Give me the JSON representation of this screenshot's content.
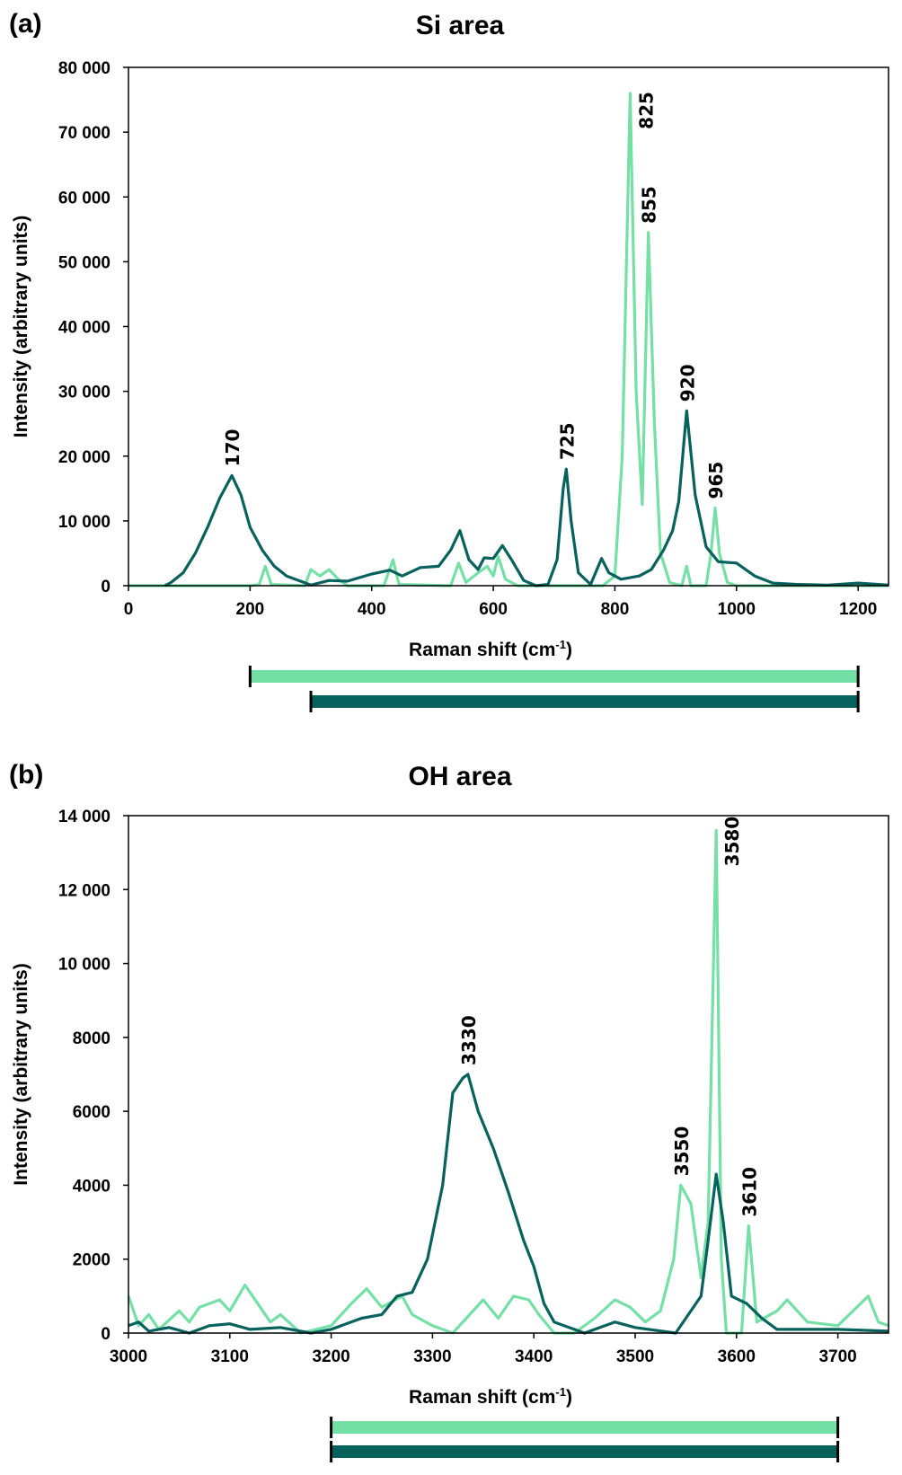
{
  "colors": {
    "light": "#74e0a6",
    "dark": "#07615c"
  },
  "chart_data": [
    {
      "type": "line",
      "panel_label": "(a)",
      "title": "Si area",
      "xlabel": "Raman shift (cm",
      "xlabel_sup": "-1",
      "xlabel_end": ")",
      "ylabel": "Intensity (arbitrary units)",
      "xlim": [
        0,
        1250
      ],
      "ylim": [
        0,
        80000
      ],
      "xticks": [
        0,
        200,
        400,
        600,
        800,
        1000,
        1200
      ],
      "xtick_labels": [
        "0",
        "200",
        "400",
        "600",
        "800",
        "1000",
        "1200"
      ],
      "yticks": [
        0,
        10000,
        20000,
        30000,
        40000,
        50000,
        60000,
        70000,
        80000
      ],
      "ytick_labels": [
        "0",
        "10 000",
        "20 000",
        "30 000",
        "40 000",
        "50 000",
        "60 000",
        "70 000",
        "80 000"
      ],
      "grid": false,
      "series": [
        {
          "name": "light",
          "color": "#74e0a6",
          "points": [
            [
              0,
              0
            ],
            [
              200,
              0
            ],
            [
              215,
              200
            ],
            [
              225,
              3000
            ],
            [
              235,
              200
            ],
            [
              290,
              0
            ],
            [
              300,
              2500
            ],
            [
              315,
              1500
            ],
            [
              330,
              2500
            ],
            [
              345,
              1000
            ],
            [
              360,
              0
            ],
            [
              420,
              0
            ],
            [
              435,
              4000
            ],
            [
              445,
              200
            ],
            [
              530,
              0
            ],
            [
              543,
              3500
            ],
            [
              555,
              500
            ],
            [
              575,
              2000
            ],
            [
              590,
              3000
            ],
            [
              600,
              1500
            ],
            [
              608,
              4500
            ],
            [
              620,
              1000
            ],
            [
              640,
              0
            ],
            [
              780,
              0
            ],
            [
              800,
              1500
            ],
            [
              812,
              20000
            ],
            [
              825,
              76000
            ],
            [
              835,
              30000
            ],
            [
              845,
              12500
            ],
            [
              855,
              54500
            ],
            [
              865,
              25000
            ],
            [
              875,
              5000
            ],
            [
              890,
              500
            ],
            [
              910,
              0
            ],
            [
              918,
              3000
            ],
            [
              925,
              0
            ],
            [
              950,
              0
            ],
            [
              958,
              5000
            ],
            [
              965,
              12000
            ],
            [
              972,
              5000
            ],
            [
              985,
              500
            ],
            [
              1000,
              0
            ],
            [
              1250,
              0
            ]
          ]
        },
        {
          "name": "dark",
          "color": "#07615c",
          "points": [
            [
              60,
              0
            ],
            [
              70,
              500
            ],
            [
              90,
              2000
            ],
            [
              110,
              5000
            ],
            [
              130,
              9000
            ],
            [
              150,
              13500
            ],
            [
              170,
              17000
            ],
            [
              185,
              14000
            ],
            [
              200,
              9000
            ],
            [
              220,
              5500
            ],
            [
              240,
              3000
            ],
            [
              260,
              1500
            ],
            [
              280,
              800
            ],
            [
              300,
              100
            ],
            [
              330,
              800
            ],
            [
              360,
              700
            ],
            [
              400,
              1800
            ],
            [
              430,
              2400
            ],
            [
              450,
              1500
            ],
            [
              480,
              2800
            ],
            [
              510,
              3000
            ],
            [
              530,
              5500
            ],
            [
              545,
              8500
            ],
            [
              560,
              4000
            ],
            [
              575,
              2500
            ],
            [
              585,
              4300
            ],
            [
              600,
              4200
            ],
            [
              615,
              6200
            ],
            [
              630,
              4000
            ],
            [
              650,
              800
            ],
            [
              670,
              0
            ],
            [
              690,
              200
            ],
            [
              705,
              4000
            ],
            [
              715,
              15000
            ],
            [
              720,
              18000
            ],
            [
              728,
              10000
            ],
            [
              740,
              2000
            ],
            [
              760,
              200
            ],
            [
              778,
              4200
            ],
            [
              790,
              2000
            ],
            [
              810,
              1000
            ],
            [
              840,
              1500
            ],
            [
              860,
              2500
            ],
            [
              880,
              5500
            ],
            [
              895,
              8500
            ],
            [
              905,
              13000
            ],
            [
              918,
              27000
            ],
            [
              932,
              14000
            ],
            [
              950,
              6000
            ],
            [
              970,
              3700
            ],
            [
              1000,
              3500
            ],
            [
              1030,
              1500
            ],
            [
              1060,
              400
            ],
            [
              1100,
              200
            ],
            [
              1150,
              100
            ],
            [
              1200,
              400
            ],
            [
              1250,
              100
            ]
          ]
        }
      ],
      "annotations": [
        {
          "text": "170",
          "x": 170,
          "y": 17000
        },
        {
          "text": "725",
          "x": 720,
          "y": 18000
        },
        {
          "text": "825",
          "x": 825,
          "y": 76000
        },
        {
          "text": "855",
          "x": 855,
          "y": 54500
        },
        {
          "text": "920",
          "x": 918,
          "y": 27000
        },
        {
          "text": "965",
          "x": 965,
          "y": 12000
        }
      ],
      "ranges": [
        {
          "series": "light",
          "from": 200,
          "to": 1200
        },
        {
          "series": "dark",
          "from": 300,
          "to": 1200
        }
      ]
    },
    {
      "type": "line",
      "panel_label": "(b)",
      "title": "OH area",
      "xlabel": "Raman shift (cm",
      "xlabel_sup": "-1",
      "xlabel_end": ")",
      "ylabel": "Intensity (arbitrary units)",
      "xlim": [
        3000,
        3750
      ],
      "ylim": [
        0,
        14000
      ],
      "xticks": [
        3000,
        3100,
        3200,
        3300,
        3400,
        3500,
        3600,
        3700
      ],
      "xtick_labels": [
        "3000",
        "3100",
        "3200",
        "3300",
        "3400",
        "3500",
        "3600",
        "3700"
      ],
      "yticks": [
        0,
        2000,
        4000,
        6000,
        8000,
        10000,
        12000,
        14000
      ],
      "ytick_labels": [
        "0",
        "2000",
        "4000",
        "6000",
        "8000",
        "10 000",
        "12 000",
        "14 000"
      ],
      "grid": false,
      "series": [
        {
          "name": "light",
          "color": "#74e0a6",
          "points": [
            [
              3000,
              1000
            ],
            [
              3010,
              200
            ],
            [
              3020,
              500
            ],
            [
              3030,
              100
            ],
            [
              3050,
              600
            ],
            [
              3060,
              300
            ],
            [
              3070,
              700
            ],
            [
              3090,
              900
            ],
            [
              3100,
              600
            ],
            [
              3115,
              1300
            ],
            [
              3130,
              700
            ],
            [
              3140,
              300
            ],
            [
              3150,
              500
            ],
            [
              3170,
              0
            ],
            [
              3200,
              200
            ],
            [
              3220,
              800
            ],
            [
              3235,
              1200
            ],
            [
              3250,
              700
            ],
            [
              3270,
              1000
            ],
            [
              3280,
              500
            ],
            [
              3300,
              200
            ],
            [
              3320,
              0
            ],
            [
              3340,
              600
            ],
            [
              3350,
              900
            ],
            [
              3365,
              400
            ],
            [
              3380,
              1000
            ],
            [
              3395,
              900
            ],
            [
              3405,
              500
            ],
            [
              3420,
              0
            ],
            [
              3440,
              0
            ],
            [
              3460,
              400
            ],
            [
              3480,
              900
            ],
            [
              3495,
              700
            ],
            [
              3510,
              300
            ],
            [
              3525,
              600
            ],
            [
              3538,
              2000
            ],
            [
              3545,
              4000
            ],
            [
              3555,
              3500
            ],
            [
              3565,
              1500
            ],
            [
              3572,
              3000
            ],
            [
              3580,
              13600
            ],
            [
              3585,
              2000
            ],
            [
              3590,
              0
            ],
            [
              3605,
              0
            ],
            [
              3612,
              2900
            ],
            [
              3620,
              300
            ],
            [
              3640,
              600
            ],
            [
              3650,
              900
            ],
            [
              3670,
              300
            ],
            [
              3700,
              200
            ],
            [
              3730,
              1000
            ],
            [
              3740,
              300
            ],
            [
              3750,
              200
            ]
          ]
        },
        {
          "name": "dark",
          "color": "#07615c",
          "points": [
            [
              3000,
              200
            ],
            [
              3010,
              300
            ],
            [
              3020,
              50
            ],
            [
              3040,
              150
            ],
            [
              3060,
              0
            ],
            [
              3080,
              200
            ],
            [
              3100,
              250
            ],
            [
              3120,
              100
            ],
            [
              3150,
              150
            ],
            [
              3180,
              0
            ],
            [
              3200,
              100
            ],
            [
              3230,
              400
            ],
            [
              3250,
              500
            ],
            [
              3265,
              1000
            ],
            [
              3280,
              1100
            ],
            [
              3295,
              2000
            ],
            [
              3310,
              4000
            ],
            [
              3320,
              6500
            ],
            [
              3330,
              6900
            ],
            [
              3335,
              7000
            ],
            [
              3345,
              6000
            ],
            [
              3360,
              5000
            ],
            [
              3375,
              3800
            ],
            [
              3390,
              2500
            ],
            [
              3400,
              1800
            ],
            [
              3410,
              800
            ],
            [
              3420,
              300
            ],
            [
              3450,
              0
            ],
            [
              3480,
              300
            ],
            [
              3500,
              150
            ],
            [
              3540,
              0
            ],
            [
              3550,
              400
            ],
            [
              3565,
              1000
            ],
            [
              3572,
              2500
            ],
            [
              3580,
              4300
            ],
            [
              3587,
              3000
            ],
            [
              3595,
              1000
            ],
            [
              3610,
              800
            ],
            [
              3625,
              400
            ],
            [
              3640,
              100
            ],
            [
              3700,
              100
            ],
            [
              3750,
              50
            ]
          ]
        }
      ],
      "annotations": [
        {
          "text": "3330",
          "x": 3335,
          "y": 7000
        },
        {
          "text": "3550",
          "x": 3545,
          "y": 4000
        },
        {
          "text": "3580",
          "x": 3580,
          "y": 13600
        },
        {
          "text": "3610",
          "x": 3612,
          "y": 2900
        }
      ],
      "ranges": [
        {
          "series": "light",
          "from": 3200,
          "to": 3700
        },
        {
          "series": "dark",
          "from": 3200,
          "to": 3700
        }
      ]
    }
  ]
}
